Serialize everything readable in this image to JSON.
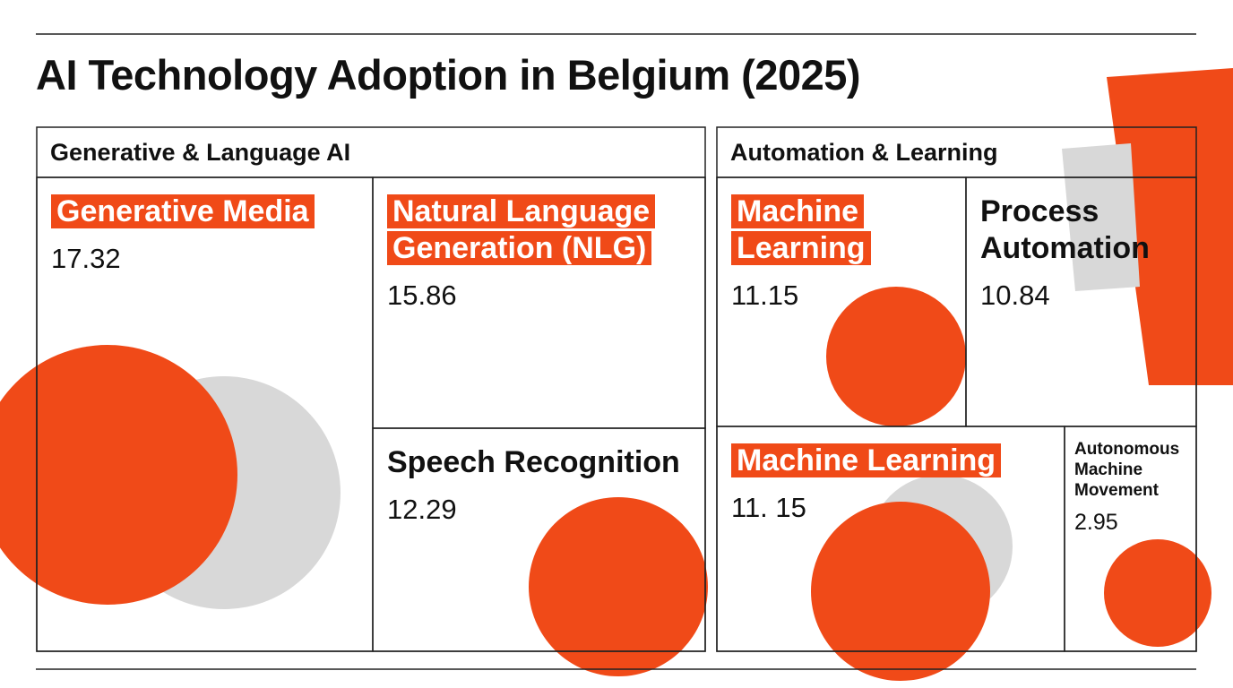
{
  "chart_data": {
    "type": "treemap",
    "title": "AI Technology Adoption in Belgium (2025)",
    "groups": [
      {
        "name": "Generative & Language AI",
        "categories": [
          "Generative Media",
          "Natural Language Generation (NLG)",
          "Speech Recognition"
        ],
        "values": [
          17.32,
          15.86,
          12.29
        ]
      },
      {
        "name": "Automation & Learning",
        "categories": [
          "Machine Learning",
          "Process Automation",
          "Machine Learning",
          "Autonomous Machine Movement"
        ],
        "values": [
          11.15,
          10.84,
          11.15,
          2.95
        ],
        "value_labels": [
          "11.15",
          "10.84",
          "11. 15",
          "2.95"
        ]
      }
    ]
  }
}
